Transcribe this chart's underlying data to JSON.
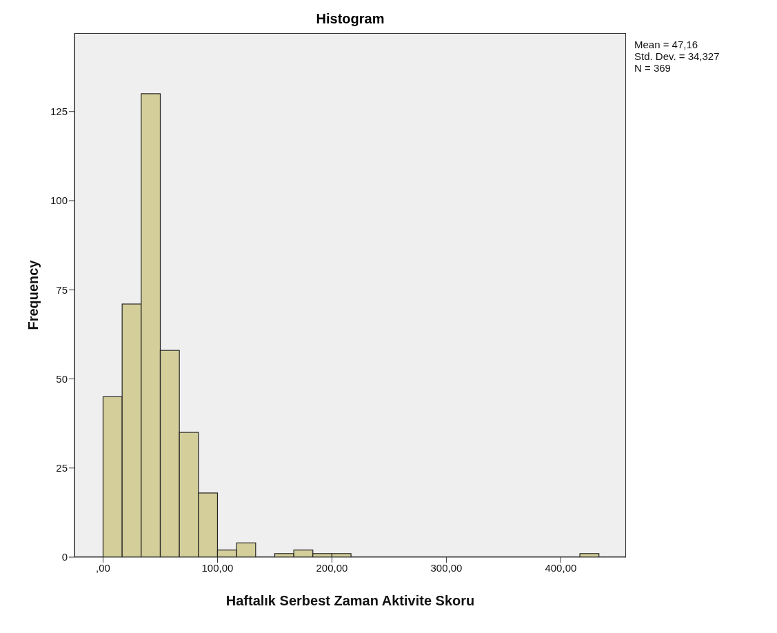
{
  "chart_data": {
    "type": "histogram",
    "title": "Histogram",
    "xlabel": "Haftalık Serbest Zaman Aktivite Skoru",
    "ylabel": "Frequency",
    "bins": [
      0,
      16.67,
      33.33,
      50,
      66.67,
      83.33,
      100,
      116.67,
      133.33,
      150,
      166.67,
      183.33,
      200,
      216.67,
      233.33,
      250,
      266.67,
      283.33,
      300,
      316.67,
      333.33,
      350,
      366.67,
      383.33,
      400,
      416.67,
      433.33
    ],
    "values": [
      45,
      71,
      130,
      58,
      35,
      18,
      2,
      4,
      0,
      1,
      2,
      1,
      1,
      0,
      0,
      0,
      0,
      0,
      0,
      0,
      0,
      0,
      0,
      0,
      0,
      1
    ],
    "color": "#d3ce9a",
    "xlim": [
      -25,
      457
    ],
    "xticks": [
      {
        "value": 0,
        "label": ",00"
      },
      {
        "value": 100,
        "label": "100,00"
      },
      {
        "value": 200,
        "label": "200,00"
      },
      {
        "value": 300,
        "label": "300,00"
      },
      {
        "value": 400,
        "label": "400,00"
      }
    ],
    "ylim": [
      0,
      147
    ],
    "yticks": [
      0,
      25,
      50,
      75,
      100,
      125
    ],
    "annotations": [
      "Mean = 47,16",
      "Std. Dev. = 34,327",
      "N = 369"
    ]
  }
}
